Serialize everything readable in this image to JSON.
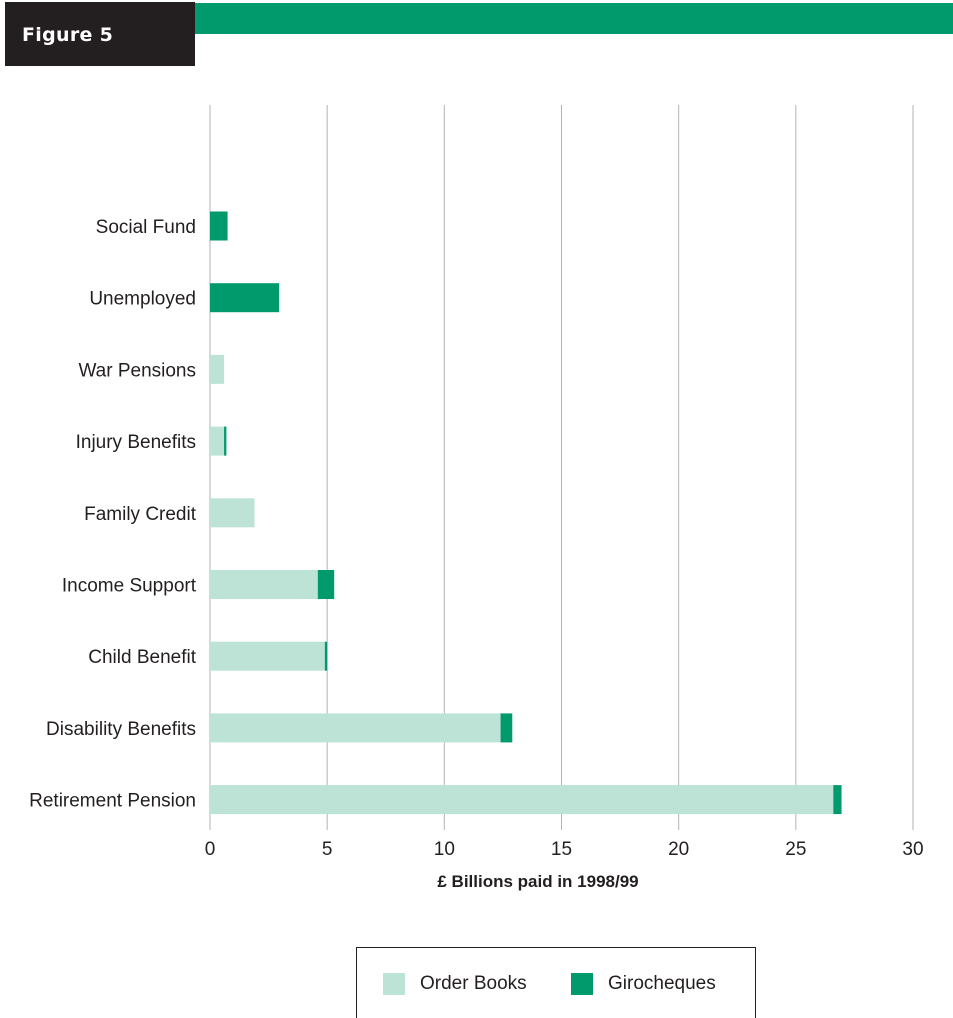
{
  "header": {
    "figure_label": "Figure 5",
    "tab_color": "#231f20",
    "bar_color": "#009a6c"
  },
  "chart_data": {
    "type": "bar",
    "orientation": "horizontal",
    "stacked": true,
    "xlabel": "£ Billions paid in 1998/99",
    "xlim": [
      0,
      30
    ],
    "xticks": [
      0,
      5,
      10,
      15,
      20,
      25,
      30
    ],
    "grid": "vertical",
    "categories": [
      "Social Fund",
      "Unemployed",
      "War Pensions",
      "Injury Benefits",
      "Family Credit",
      "Income Support",
      "Child Benefit",
      "Disability Benefits",
      "Retirement Pension"
    ],
    "series": [
      {
        "name": "Order Books",
        "color": "#bde3d6",
        "values": [
          0,
          0,
          0.6,
          0.6,
          1.9,
          4.6,
          4.9,
          12.4,
          26.6
        ]
      },
      {
        "name": "Girocheques",
        "color": "#009a6c",
        "values": [
          0.75,
          2.95,
          0,
          0.1,
          0,
          0.7,
          0.1,
          0.5,
          0.35
        ]
      }
    ],
    "legend": "bottom-center"
  }
}
